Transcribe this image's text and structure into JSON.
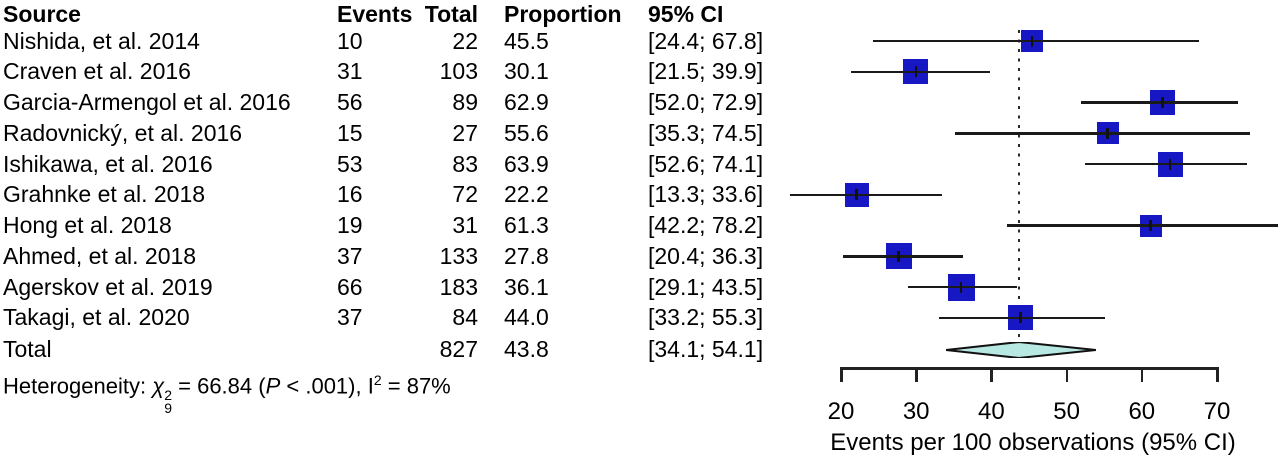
{
  "table": {
    "headers": {
      "source": "Source",
      "events": "Events",
      "total": "Total",
      "proportion": "Proportion",
      "ci": "95% CI"
    },
    "rows": [
      {
        "source": "Nishida, et al. 2014",
        "events": "10",
        "total": "22",
        "proportion": "45.5",
        "ci": "[24.4; 67.8]"
      },
      {
        "source": "Craven et al. 2016",
        "events": "31",
        "total": "103",
        "proportion": "30.1",
        "ci": "[21.5; 39.9]"
      },
      {
        "source": "Garcia-Armengol et al. 2016",
        "events": "56",
        "total": "89",
        "proportion": "62.9",
        "ci": "[52.0; 72.9]"
      },
      {
        "source": "Radovnický, et al. 2016",
        "events": "15",
        "total": "27",
        "proportion": "55.6",
        "ci": "[35.3; 74.5]"
      },
      {
        "source": "Ishikawa, et al. 2016",
        "events": "53",
        "total": "83",
        "proportion": "63.9",
        "ci": "[52.6; 74.1]"
      },
      {
        "source": "Grahnke et al. 2018",
        "events": "16",
        "total": "72",
        "proportion": "22.2",
        "ci": "[13.3; 33.6]"
      },
      {
        "source": "Hong et al. 2018",
        "events": "19",
        "total": "31",
        "proportion": "61.3",
        "ci": "[42.2; 78.2]"
      },
      {
        "source": "Ahmed, et al. 2018",
        "events": "37",
        "total": "133",
        "proportion": "27.8",
        "ci": "[20.4; 36.3]"
      },
      {
        "source": "Agerskov et al. 2019",
        "events": "66",
        "total": "183",
        "proportion": "36.1",
        "ci": "[29.1; 43.5]"
      },
      {
        "source": "Takagi, et al. 2020",
        "events": "37",
        "total": "84",
        "proportion": "44.0",
        "ci": "[33.2; 55.3]"
      }
    ],
    "total_row": {
      "source": "Total",
      "events": "",
      "total": "827",
      "proportion": "43.8",
      "ci": "[34.1; 54.1]"
    },
    "heterogeneity": {
      "label": "Heterogeneity: ",
      "chi": "χ",
      "chi_sup": "2",
      "chi_sub": "9",
      "eq": " = 66.84 (",
      "p": "P",
      "after_p": " < .001), I",
      "i_sup": "2",
      "end": " = 87%"
    }
  },
  "chart_data": {
    "type": "scatter",
    "variant": "forest_plot",
    "xlabel": "Events per 100 observations (95% CI)",
    "x_ticks": [
      20,
      30,
      40,
      50,
      60,
      70
    ],
    "xlim": [
      20,
      70
    ],
    "reference_line_x": 43.8,
    "studies": [
      {
        "name": "Nishida, et al. 2014",
        "estimate": 45.5,
        "ci_low": 24.4,
        "ci_high": 67.8,
        "n": 22
      },
      {
        "name": "Craven et al. 2016",
        "estimate": 30.1,
        "ci_low": 21.5,
        "ci_high": 39.9,
        "n": 103
      },
      {
        "name": "Garcia-Armengol et al. 2016",
        "estimate": 62.9,
        "ci_low": 52.0,
        "ci_high": 72.9,
        "n": 89
      },
      {
        "name": "Radovnický, et al. 2016",
        "estimate": 55.6,
        "ci_low": 35.3,
        "ci_high": 74.5,
        "n": 27
      },
      {
        "name": "Ishikawa, et al. 2016",
        "estimate": 63.9,
        "ci_low": 52.6,
        "ci_high": 74.1,
        "n": 83
      },
      {
        "name": "Grahnke et al. 2018",
        "estimate": 22.2,
        "ci_low": 13.3,
        "ci_high": 33.6,
        "n": 72
      },
      {
        "name": "Hong et al. 2018",
        "estimate": 61.3,
        "ci_low": 42.2,
        "ci_high": 78.2,
        "n": 31
      },
      {
        "name": "Ahmed, et al. 2018",
        "estimate": 27.8,
        "ci_low": 20.4,
        "ci_high": 36.3,
        "n": 133
      },
      {
        "name": "Agerskov et al. 2019",
        "estimate": 36.1,
        "ci_low": 29.1,
        "ci_high": 43.5,
        "n": 183
      },
      {
        "name": "Takagi, et al. 2020",
        "estimate": 44.0,
        "ci_low": 33.2,
        "ci_high": 55.3,
        "n": 84
      }
    ],
    "pooled": {
      "estimate": 43.8,
      "ci_low": 34.1,
      "ci_high": 54.1,
      "total_n": 827
    }
  },
  "colors": {
    "square": "#1717c3",
    "diamond_fill": "#b7e8e2",
    "line": "#1a1a1a",
    "text": "#000000"
  }
}
